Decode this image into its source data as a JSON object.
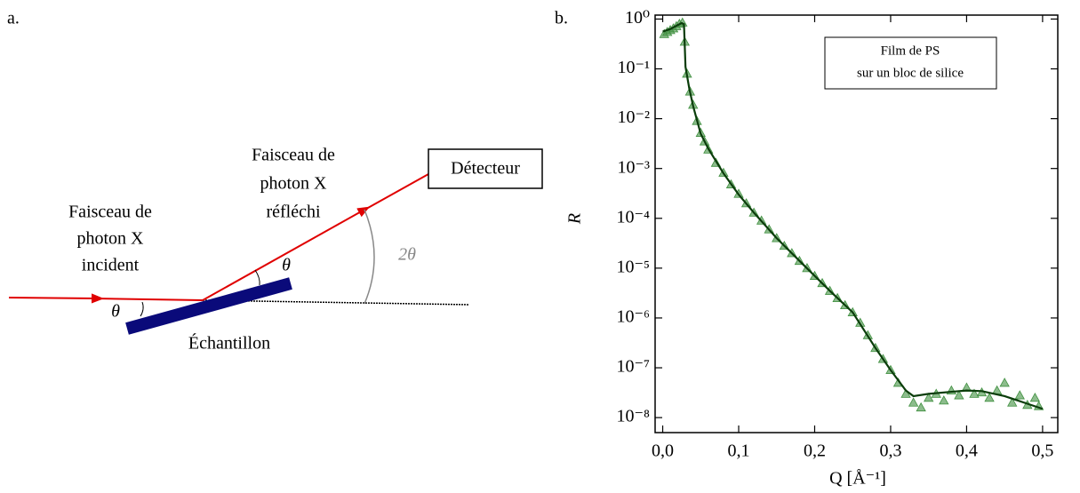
{
  "panel_a": {
    "label": "a.",
    "incident": [
      "Faisceau de",
      "photon X",
      "incident"
    ],
    "reflected": [
      "Faisceau de",
      "photon X",
      "réfléchi"
    ],
    "detector": "Détecteur",
    "theta_in": "θ",
    "theta_out": "θ",
    "two_theta": "2θ",
    "sample": "Échantillon"
  },
  "chart_data": {
    "type": "scatter",
    "panel_label": "b.",
    "annotation": [
      "Film de PS",
      "sur un bloc de silice"
    ],
    "x_label": "Q [Å⁻¹]",
    "y_label": "R",
    "log_y": true,
    "xlim": [
      -0.01,
      0.52
    ],
    "ylim": [
      5e-09,
      1.2
    ],
    "xticks": [
      {
        "value": 0,
        "label": "0,0"
      },
      {
        "value": 0.1,
        "label": "0,1"
      },
      {
        "value": 0.2,
        "label": "0,2"
      },
      {
        "value": 0.3,
        "label": "0,3"
      },
      {
        "value": 0.4,
        "label": "0,4"
      },
      {
        "value": 0.5,
        "label": "0,5"
      }
    ],
    "yticks": [
      {
        "value": 1,
        "label": "10⁰"
      },
      {
        "value": 0.1,
        "label": "10⁻¹"
      },
      {
        "value": 0.01,
        "label": "10⁻²"
      },
      {
        "value": 0.001,
        "label": "10⁻³"
      },
      {
        "value": 0.0001,
        "label": "10⁻⁴"
      },
      {
        "value": 1e-05,
        "label": "10⁻⁵"
      },
      {
        "value": 1e-06,
        "label": "10⁻⁶"
      },
      {
        "value": 1e-07,
        "label": "10⁻⁷"
      },
      {
        "value": 1e-08,
        "label": "10⁻⁸"
      }
    ],
    "series": [
      {
        "style": "markers",
        "color": "#3f8f3f",
        "x": [
          0.002,
          0.006,
          0.01,
          0.014,
          0.018,
          0.022,
          0.026,
          0.029,
          0.032,
          0.036,
          0.04,
          0.045,
          0.05,
          0.055,
          0.06,
          0.07,
          0.08,
          0.09,
          0.1,
          0.11,
          0.12,
          0.13,
          0.14,
          0.15,
          0.16,
          0.17,
          0.18,
          0.19,
          0.2,
          0.21,
          0.22,
          0.23,
          0.24,
          0.25,
          0.26,
          0.27,
          0.28,
          0.29,
          0.3,
          0.31,
          0.32,
          0.33,
          0.34,
          0.35,
          0.36,
          0.37,
          0.38,
          0.39,
          0.4,
          0.41,
          0.42,
          0.43,
          0.44,
          0.45,
          0.46,
          0.47,
          0.48,
          0.49,
          0.495
        ],
        "values": [
          0.5,
          0.55,
          0.6,
          0.65,
          0.72,
          0.8,
          0.85,
          0.35,
          0.08,
          0.035,
          0.019,
          0.009,
          0.0052,
          0.0035,
          0.0024,
          0.0013,
          0.00082,
          0.00048,
          0.00031,
          0.0002,
          0.00013,
          9e-05,
          6e-05,
          4e-05,
          2.8e-05,
          2e-05,
          1.4e-05,
          1e-05,
          7e-06,
          5e-06,
          3.5e-06,
          2.5e-06,
          1.8e-06,
          1.3e-06,
          8e-07,
          4.5e-07,
          2.5e-07,
          1.5e-07,
          9e-08,
          5e-08,
          3e-08,
          2e-08,
          1.6e-08,
          2.5e-08,
          3e-08,
          2.2e-08,
          3.5e-08,
          2.8e-08,
          4e-08,
          3e-08,
          3.2e-08,
          2.5e-08,
          3.5e-08,
          5e-08,
          2e-08,
          2.8e-08,
          1.8e-08,
          2.5e-08,
          1.7e-08
        ]
      },
      {
        "style": "line",
        "color": "#0b3d0b",
        "x": [
          0.0,
          0.01,
          0.02,
          0.025,
          0.028,
          0.03,
          0.035,
          0.04,
          0.05,
          0.06,
          0.08,
          0.1,
          0.12,
          0.15,
          0.18,
          0.2,
          0.22,
          0.25,
          0.28,
          0.3,
          0.32,
          0.33,
          0.35,
          0.38,
          0.4,
          0.42,
          0.45,
          0.48,
          0.5
        ],
        "values": [
          0.56,
          0.63,
          0.76,
          0.83,
          0.79,
          0.11,
          0.04,
          0.018,
          0.005,
          0.0025,
          0.0008,
          0.0003,
          0.00013,
          4e-05,
          1.4e-05,
          7e-06,
          3.5e-06,
          1.3e-06,
          2.5e-07,
          9e-08,
          3.5e-08,
          2.7e-08,
          3e-08,
          3.3e-08,
          3.5e-08,
          3.4e-08,
          2.7e-08,
          1.9e-08,
          1.5e-08
        ]
      }
    ]
  }
}
